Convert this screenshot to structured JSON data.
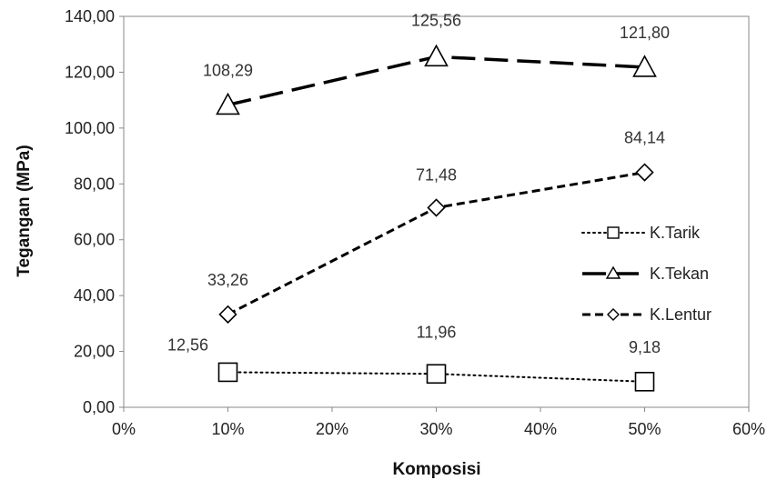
{
  "chart_data": {
    "type": "line",
    "xlabel": "Komposisi",
    "ylabel": "Tegangan (MPa)",
    "x": [
      "10%",
      "30%",
      "50%"
    ],
    "x_values": [
      10,
      30,
      50
    ],
    "xlim": [
      0,
      60
    ],
    "x_ticks": [
      "0%",
      "10%",
      "20%",
      "30%",
      "40%",
      "50%",
      "60%"
    ],
    "ylim": [
      0,
      140
    ],
    "y_ticks": [
      "0,00",
      "20,00",
      "40,00",
      "60,00",
      "80,00",
      "100,00",
      "120,00",
      "140,00"
    ],
    "grid": false,
    "legend_position": "right",
    "series": [
      {
        "name": "K.Tarik",
        "values": [
          12.56,
          11.96,
          9.18
        ],
        "labels": [
          "12,56",
          "11,96",
          "9,18"
        ],
        "marker": "square",
        "line_style": "dotted",
        "color": "#000000"
      },
      {
        "name": "K.Tekan",
        "values": [
          108.29,
          125.56,
          121.8
        ],
        "labels": [
          "108,29",
          "125,56",
          "121,80"
        ],
        "marker": "triangle",
        "line_style": "long-dash",
        "color": "#000000"
      },
      {
        "name": "K.Lentur",
        "values": [
          33.26,
          71.48,
          84.14
        ],
        "labels": [
          "33,26",
          "71,48",
          "84,14"
        ],
        "marker": "diamond",
        "line_style": "short-dash",
        "color": "#000000"
      }
    ]
  }
}
